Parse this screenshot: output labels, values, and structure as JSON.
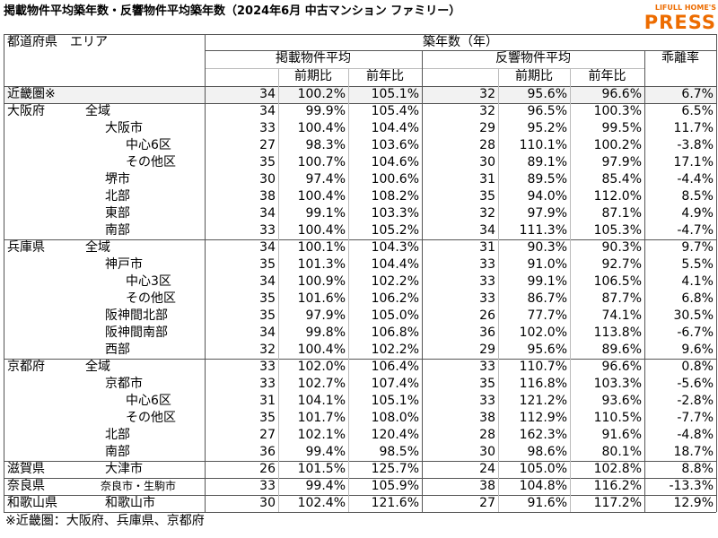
{
  "header": {
    "title": "掲載物件平均築年数・反響物件平均築年数（2024年6月 中古マンション ファミリー）",
    "logo_top": "LIFULL HOME'S",
    "logo_main": "PRESS"
  },
  "table": {
    "head": {
      "region": "都道府県　エリア",
      "age": "築年数（年）",
      "listed": "掲載物件平均",
      "inquired": "反響物件平均",
      "gap": "乖離率",
      "sub": [
        "前期比",
        "前年比",
        "前期比",
        "前年比"
      ]
    },
    "rows": [
      {
        "pref": "近畿圏※",
        "cells": [
          "34",
          "100.2%",
          "105.1%",
          "32",
          "95.6%",
          "96.6%",
          "6.7%"
        ]
      },
      {
        "pref": "大阪府",
        "area": "全域",
        "cells": [
          "34",
          "99.9%",
          "105.4%",
          "32",
          "96.5%",
          "100.3%",
          "6.5%"
        ]
      },
      {
        "area": "大阪市",
        "cells": [
          "33",
          "100.4%",
          "104.4%",
          "29",
          "95.2%",
          "99.5%",
          "11.7%"
        ]
      },
      {
        "area": "中心6区",
        "cells": [
          "27",
          "98.3%",
          "103.6%",
          "28",
          "110.1%",
          "100.2%",
          "-3.8%"
        ]
      },
      {
        "area": "その他区",
        "cells": [
          "35",
          "100.7%",
          "104.6%",
          "30",
          "89.1%",
          "97.9%",
          "17.1%"
        ]
      },
      {
        "area": "堺市",
        "cells": [
          "30",
          "97.4%",
          "100.6%",
          "31",
          "89.5%",
          "85.4%",
          "-4.4%"
        ]
      },
      {
        "area": "北部",
        "cells": [
          "38",
          "100.4%",
          "108.2%",
          "35",
          "94.0%",
          "112.0%",
          "8.5%"
        ]
      },
      {
        "area": "東部",
        "cells": [
          "34",
          "99.1%",
          "103.3%",
          "32",
          "97.9%",
          "87.1%",
          "4.9%"
        ]
      },
      {
        "area": "南部",
        "cells": [
          "33",
          "100.4%",
          "105.2%",
          "34",
          "111.3%",
          "105.3%",
          "-4.7%"
        ]
      },
      {
        "pref": "兵庫県",
        "area": "全域",
        "cells": [
          "34",
          "100.1%",
          "104.3%",
          "31",
          "90.3%",
          "90.3%",
          "9.7%"
        ]
      },
      {
        "area": "神戸市",
        "cells": [
          "35",
          "101.3%",
          "104.4%",
          "33",
          "91.0%",
          "92.7%",
          "5.5%"
        ]
      },
      {
        "area": "中心3区",
        "cells": [
          "34",
          "100.9%",
          "102.2%",
          "33",
          "99.1%",
          "106.5%",
          "4.1%"
        ]
      },
      {
        "area": "その他区",
        "cells": [
          "35",
          "101.6%",
          "106.2%",
          "33",
          "86.7%",
          "87.7%",
          "6.8%"
        ]
      },
      {
        "area": "阪神間北部",
        "cells": [
          "35",
          "97.9%",
          "105.0%",
          "26",
          "77.7%",
          "74.1%",
          "30.5%"
        ]
      },
      {
        "area": "阪神間南部",
        "cells": [
          "34",
          "99.8%",
          "106.8%",
          "36",
          "102.0%",
          "113.8%",
          "-6.7%"
        ]
      },
      {
        "area": "西部",
        "cells": [
          "32",
          "100.4%",
          "102.2%",
          "29",
          "95.6%",
          "89.6%",
          "9.6%"
        ]
      },
      {
        "pref": "京都府",
        "area": "全域",
        "cells": [
          "33",
          "102.0%",
          "106.4%",
          "33",
          "110.7%",
          "96.6%",
          "0.8%"
        ]
      },
      {
        "area": "京都市",
        "cells": [
          "33",
          "102.7%",
          "107.4%",
          "35",
          "116.8%",
          "103.3%",
          "-5.6%"
        ]
      },
      {
        "area": "中心6区",
        "cells": [
          "31",
          "104.1%",
          "105.1%",
          "33",
          "121.2%",
          "93.6%",
          "-2.8%"
        ]
      },
      {
        "area": "その他区",
        "cells": [
          "35",
          "101.7%",
          "108.0%",
          "38",
          "112.9%",
          "110.5%",
          "-7.7%"
        ]
      },
      {
        "area": "北部",
        "cells": [
          "27",
          "102.1%",
          "120.4%",
          "28",
          "162.3%",
          "91.6%",
          "-4.8%"
        ]
      },
      {
        "area": "南部",
        "cells": [
          "36",
          "99.4%",
          "98.5%",
          "30",
          "98.6%",
          "80.1%",
          "18.7%"
        ]
      },
      {
        "pref": "滋賀県",
        "area": "大津市",
        "cells": [
          "26",
          "101.5%",
          "125.7%",
          "24",
          "105.0%",
          "102.8%",
          "8.8%"
        ]
      },
      {
        "pref": "奈良県",
        "area": "奈良市・生駒市",
        "cells": [
          "33",
          "99.4%",
          "105.9%",
          "38",
          "104.8%",
          "116.2%",
          "-13.3%"
        ]
      },
      {
        "pref": "和歌山県",
        "area": "和歌山市",
        "cells": [
          "30",
          "102.4%",
          "121.6%",
          "27",
          "91.6%",
          "117.2%",
          "12.9%"
        ]
      }
    ]
  },
  "footnote": "※近畿圏：大阪府、兵庫県、京都府"
}
